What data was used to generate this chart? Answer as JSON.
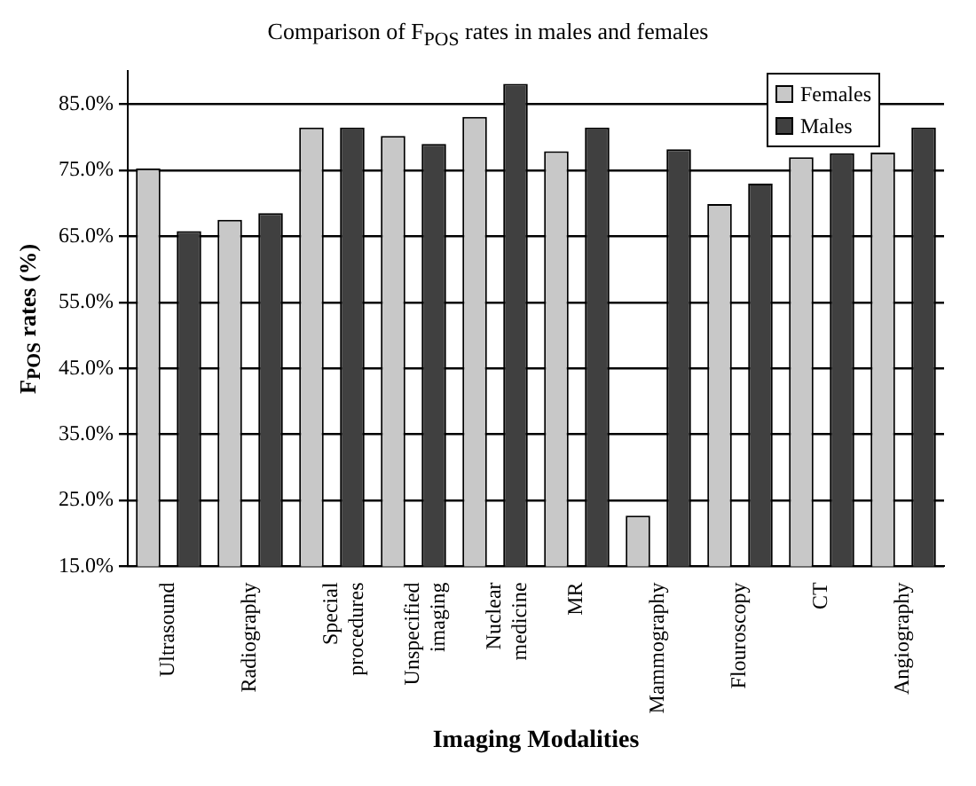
{
  "chart_data": {
    "type": "bar",
    "title": "Comparison of F$_{POS}$ rates in males and females",
    "xlabel": "Imaging Modalities",
    "ylabel": "F$_{POS}$ rates (%)",
    "categories": [
      "Ultrasound",
      "Radiography",
      "Special procedures",
      "Unspecified imaging",
      "Nuclear medicine",
      "MR",
      "Mammography",
      "Flouroscopy",
      "CT",
      "Angiography"
    ],
    "series": [
      {
        "name": "Females",
        "color": "#c8c8c8",
        "values": [
          75.3,
          67.5,
          81.5,
          80.2,
          83.1,
          77.9,
          22.7,
          69.9,
          77.0,
          77.7
        ]
      },
      {
        "name": "Males",
        "color": "#404040",
        "values": [
          65.8,
          68.5,
          81.5,
          79.0,
          88.1,
          81.5,
          78.2,
          73.0,
          77.6,
          81.5
        ]
      }
    ],
    "ylim": [
      15,
      90
    ],
    "yticks": [
      {
        "value": 15,
        "label": "15.0%"
      },
      {
        "value": 25,
        "label": "25.0%"
      },
      {
        "value": 35,
        "label": "35.0%"
      },
      {
        "value": 45,
        "label": "45.0%"
      },
      {
        "value": 55,
        "label": "55.0%"
      },
      {
        "value": 65,
        "label": "65.0%"
      },
      {
        "value": 75,
        "label": "75.0%"
      },
      {
        "value": 85,
        "label": "85.0%"
      }
    ],
    "grid": "y",
    "legend": "top right"
  }
}
